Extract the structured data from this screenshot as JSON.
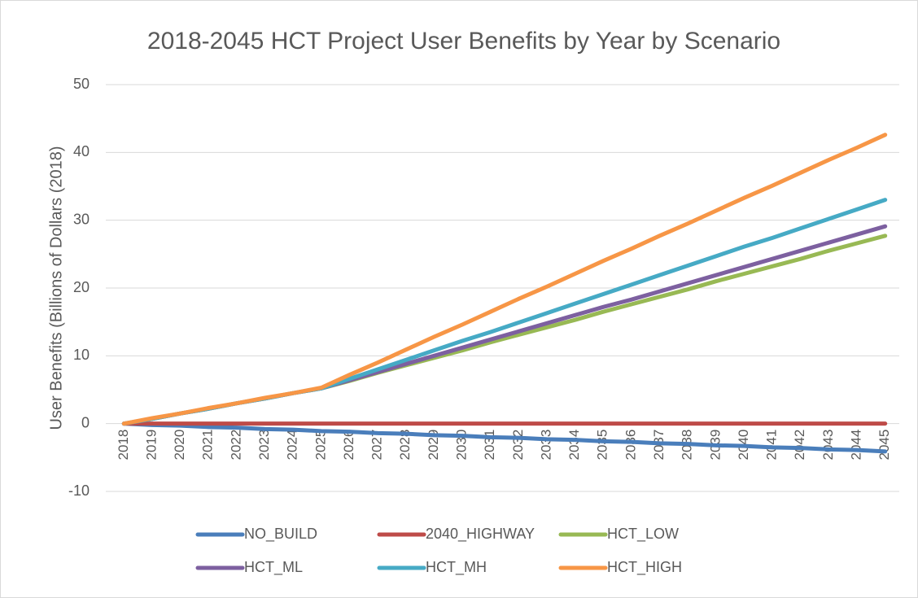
{
  "chart_data": {
    "type": "line",
    "title": "2018-2045 HCT Project User Benefits by Year by Scenario",
    "y_label": "User Benefits (Billions of Dollars (2018)",
    "categories": [
      "2018",
      "2019",
      "2020",
      "2021",
      "2022",
      "2023",
      "2024",
      "2025",
      "2026",
      "2027",
      "2028",
      "2029",
      "2030",
      "2031",
      "2032",
      "2033",
      "2034",
      "2035",
      "2036",
      "2037",
      "2038",
      "2039",
      "2040",
      "2041",
      "2042",
      "2043",
      "2044",
      "2045"
    ],
    "series": [
      {
        "name": "NO_BUILD",
        "color": "#4a7ebb",
        "values": [
          0,
          -0.2,
          -0.3,
          -0.5,
          -0.6,
          -0.8,
          -0.9,
          -1.1,
          -1.2,
          -1.4,
          -1.5,
          -1.7,
          -1.8,
          -2.0,
          -2.1,
          -2.3,
          -2.4,
          -2.6,
          -2.7,
          -2.9,
          -3.0,
          -3.2,
          -3.3,
          -3.5,
          -3.6,
          -3.8,
          -3.9,
          -4.1
        ]
      },
      {
        "name": "2040_HIGHWAY",
        "color": "#be4b48",
        "values": [
          0,
          0,
          0,
          0,
          0,
          0,
          0,
          0,
          0,
          0,
          0,
          0,
          0,
          0,
          0,
          0,
          0,
          0,
          0,
          0,
          0,
          0,
          0,
          0,
          0,
          0,
          0,
          0
        ]
      },
      {
        "name": "HCT_LOW",
        "color": "#98b954",
        "values": [
          0,
          0.7,
          1.5,
          2.2,
          3.0,
          3.7,
          4.5,
          5.2,
          6.3,
          7.5,
          8.6,
          9.7,
          10.8,
          12.0,
          13.1,
          14.2,
          15.3,
          16.5,
          17.6,
          18.7,
          19.8,
          21.0,
          22.1,
          23.2,
          24.3,
          25.5,
          26.6,
          27.7
        ]
      },
      {
        "name": "HCT_ML",
        "color": "#7d60a0",
        "values": [
          0,
          0.7,
          1.5,
          2.2,
          3.0,
          3.7,
          4.5,
          5.2,
          6.4,
          7.6,
          8.8,
          10.0,
          11.2,
          12.4,
          13.6,
          14.8,
          16.0,
          17.2,
          18.3,
          19.5,
          20.7,
          21.9,
          23.1,
          24.3,
          25.5,
          26.7,
          27.9,
          29.1
        ]
      },
      {
        "name": "HCT_MH",
        "color": "#46aac5",
        "values": [
          0,
          0.7,
          1.5,
          2.2,
          3.0,
          3.7,
          4.5,
          5.2,
          6.6,
          8.0,
          9.4,
          10.8,
          12.2,
          13.5,
          14.9,
          16.3,
          17.7,
          19.1,
          20.5,
          21.9,
          23.3,
          24.7,
          26.1,
          27.4,
          28.8,
          30.2,
          31.6,
          33.0
        ]
      },
      {
        "name": "HCT_HIGH",
        "color": "#f79646",
        "values": [
          0,
          0.8,
          1.5,
          2.3,
          3.0,
          3.8,
          4.5,
          5.3,
          7.2,
          9.0,
          10.9,
          12.8,
          14.6,
          16.5,
          18.4,
          20.2,
          22.1,
          24.0,
          25.8,
          27.7,
          29.5,
          31.4,
          33.3,
          35.1,
          37.0,
          38.9,
          40.7,
          42.6
        ]
      }
    ],
    "ylim": [
      -10,
      50
    ],
    "yticks": [
      -10,
      0,
      10,
      20,
      30,
      40,
      50
    ],
    "grid": true
  }
}
